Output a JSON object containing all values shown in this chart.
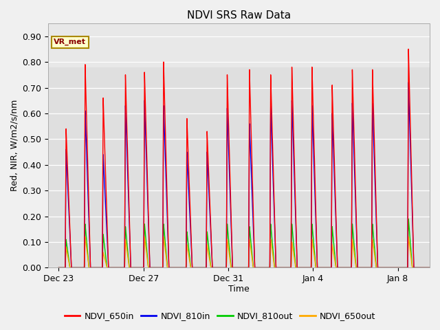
{
  "title": "NDVI SRS Raw Data",
  "xlabel": "Time",
  "ylabel": "Red, NIR, W/m2/s/nm",
  "ylim": [
    0.0,
    0.95
  ],
  "yticks": [
    0.0,
    0.1,
    0.2,
    0.3,
    0.4,
    0.5,
    0.6,
    0.7,
    0.8,
    0.9
  ],
  "background_color": "#f0f0f0",
  "plot_bg_color": "#e8e8e8",
  "plot_bg_band_color": "#d8d8d8",
  "annotation_text": "VR_met",
  "annotation_box_color": "#ffffcc",
  "annotation_border_color": "#aa8800",
  "series_order": [
    "NDVI_650in",
    "NDVI_810in",
    "NDVI_810out",
    "NDVI_650out"
  ],
  "series": {
    "NDVI_650in": {
      "color": "#ff0000",
      "lw": 1.0
    },
    "NDVI_810in": {
      "color": "#0000ee",
      "lw": 1.0
    },
    "NDVI_810out": {
      "color": "#00cc00",
      "lw": 1.0
    },
    "NDVI_650out": {
      "color": "#ffaa00",
      "lw": 1.0
    }
  },
  "xtick_labels": [
    "Dec 23",
    "Dec 27",
    "Dec 31",
    "Jan 4",
    "Jan 8"
  ],
  "xtick_positions": [
    0,
    4,
    8,
    12,
    16
  ],
  "xlim": [
    -0.5,
    17.5
  ],
  "peak_days": [
    0.35,
    1.25,
    2.1,
    3.15,
    4.05,
    4.95,
    6.05,
    7.0,
    7.95,
    9.0,
    10.0,
    11.0,
    11.95,
    12.9,
    13.85,
    14.8,
    16.5
  ],
  "peak_heights_650in": [
    0.54,
    0.79,
    0.66,
    0.75,
    0.76,
    0.8,
    0.58,
    0.53,
    0.75,
    0.77,
    0.75,
    0.78,
    0.78,
    0.71,
    0.77,
    0.77,
    0.85
  ],
  "peak_heights_810in": [
    0.46,
    0.61,
    0.44,
    0.63,
    0.65,
    0.63,
    0.45,
    0.45,
    0.62,
    0.56,
    0.63,
    0.65,
    0.63,
    0.6,
    0.64,
    0.64,
    0.72
  ],
  "peak_heights_810out": [
    0.11,
    0.17,
    0.13,
    0.16,
    0.17,
    0.17,
    0.14,
    0.14,
    0.17,
    0.16,
    0.17,
    0.17,
    0.17,
    0.16,
    0.17,
    0.17,
    0.19
  ],
  "peak_heights_650out": [
    0.08,
    0.12,
    0.06,
    0.11,
    0.12,
    0.12,
    0.09,
    0.09,
    0.11,
    0.11,
    0.11,
    0.1,
    0.11,
    0.09,
    0.11,
    0.11,
    0.12
  ],
  "spike_rise": 0.04,
  "spike_fall": 0.25,
  "spike_rise_out": 0.04,
  "spike_fall_out": 0.18,
  "total_time": 17.5,
  "dt": 0.002
}
